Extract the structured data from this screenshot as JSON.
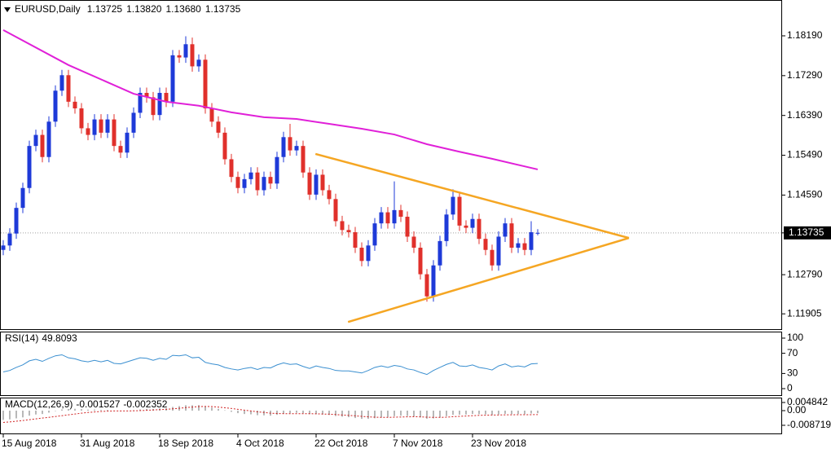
{
  "chart_data": [
    {
      "type": "candlestick",
      "title": "EURUSD,Daily",
      "ohlc_labels": [
        "1.13725",
        "1.13820",
        "1.13680",
        "1.13735"
      ],
      "categories": [
        "15 Aug 2018",
        null,
        null,
        null,
        null,
        null,
        null,
        null,
        null,
        null,
        null,
        null,
        "31 Aug 2018",
        null,
        null,
        null,
        null,
        null,
        null,
        null,
        null,
        null,
        null,
        null,
        "18 Sep 2018",
        null,
        null,
        null,
        null,
        null,
        null,
        null,
        null,
        null,
        null,
        null,
        "4 Oct 2018",
        null,
        null,
        null,
        null,
        null,
        null,
        null,
        null,
        null,
        null,
        null,
        "22 Oct 2018",
        null,
        null,
        null,
        null,
        null,
        null,
        null,
        null,
        null,
        null,
        null,
        "7 Nov 2018",
        null,
        null,
        null,
        null,
        null,
        null,
        null,
        null,
        null,
        null,
        null,
        "23 Nov 2018",
        null,
        null,
        null,
        null,
        null,
        null,
        null,
        null,
        null,
        null
      ],
      "open": [
        1.1335,
        1.1345,
        1.1372,
        1.143,
        1.1475,
        1.157,
        1.1595,
        1.1545,
        1.1625,
        1.1695,
        1.173,
        1.167,
        1.1655,
        1.161,
        1.1595,
        1.163,
        1.16,
        1.163,
        1.157,
        1.1555,
        1.16,
        1.1645,
        1.169,
        1.168,
        1.164,
        1.169,
        1.167,
        1.1775,
        1.177,
        1.18,
        1.175,
        1.1765,
        1.1655,
        1.1625,
        1.16,
        1.154,
        1.15,
        1.1475,
        1.1495,
        1.151,
        1.147,
        1.15,
        1.1485,
        1.1545,
        1.159,
        1.156,
        1.157,
        1.151,
        1.146,
        1.1505,
        1.147,
        1.145,
        1.14,
        1.138,
        1.1375,
        1.134,
        1.131,
        1.1345,
        1.1395,
        1.142,
        1.1395,
        1.1425,
        1.141,
        1.1365,
        1.134,
        1.128,
        1.123,
        1.13,
        1.1355,
        1.1415,
        1.1455,
        1.139,
        1.1385,
        1.1405,
        1.136,
        1.1335,
        1.13,
        1.1365,
        1.1395,
        1.134,
        1.135,
        1.1335,
        1.13725
      ],
      "high": [
        1.1357,
        1.1384,
        1.1442,
        1.1487,
        1.1582,
        1.1607,
        1.1607,
        1.1637,
        1.1707,
        1.1742,
        1.1742,
        1.1682,
        1.1667,
        1.1622,
        1.1642,
        1.1642,
        1.1642,
        1.1642,
        1.1582,
        1.1612,
        1.1657,
        1.1702,
        1.1702,
        1.1692,
        1.1702,
        1.1702,
        1.1787,
        1.1787,
        1.1818,
        1.1815,
        1.1777,
        1.1777,
        1.1667,
        1.1637,
        1.1612,
        1.1552,
        1.1512,
        1.1507,
        1.1522,
        1.1522,
        1.1512,
        1.1512,
        1.1557,
        1.1602,
        1.162,
        1.1582,
        1.1582,
        1.1522,
        1.1517,
        1.1517,
        1.1482,
        1.1462,
        1.1412,
        1.1392,
        1.1387,
        1.1352,
        1.1357,
        1.1407,
        1.1432,
        1.1432,
        1.149,
        1.1437,
        1.1422,
        1.1377,
        1.1352,
        1.1292,
        1.1312,
        1.1367,
        1.1427,
        1.1472,
        1.1467,
        1.1402,
        1.1417,
        1.1417,
        1.1372,
        1.1347,
        1.1377,
        1.1407,
        1.1407,
        1.1362,
        1.1362,
        1.14,
        1.1382
      ],
      "low": [
        1.1323,
        1.1333,
        1.136,
        1.1418,
        1.1463,
        1.1558,
        1.1533,
        1.1533,
        1.1613,
        1.1683,
        1.1658,
        1.1643,
        1.1598,
        1.1583,
        1.1583,
        1.1588,
        1.1588,
        1.1558,
        1.1543,
        1.1543,
        1.1588,
        1.1633,
        1.1668,
        1.1628,
        1.1628,
        1.1658,
        1.1658,
        1.1758,
        1.1758,
        1.1738,
        1.1738,
        1.1643,
        1.1613,
        1.1588,
        1.1528,
        1.1488,
        1.1463,
        1.1463,
        1.1483,
        1.1458,
        1.1458,
        1.1473,
        1.1473,
        1.1533,
        1.1548,
        1.1548,
        1.1498,
        1.1448,
        1.1448,
        1.1458,
        1.1438,
        1.1388,
        1.1368,
        1.1363,
        1.1328,
        1.1298,
        1.1298,
        1.1333,
        1.1383,
        1.1383,
        1.1383,
        1.1398,
        1.1353,
        1.1328,
        1.1268,
        1.1218,
        1.1218,
        1.1288,
        1.1343,
        1.1403,
        1.1378,
        1.1373,
        1.1373,
        1.1348,
        1.1323,
        1.1288,
        1.1288,
        1.1353,
        1.1328,
        1.1328,
        1.1323,
        1.1323,
        1.1368
      ],
      "close": [
        1.1345,
        1.1372,
        1.143,
        1.1475,
        1.157,
        1.1595,
        1.1545,
        1.1625,
        1.1695,
        1.173,
        1.167,
        1.1655,
        1.161,
        1.1595,
        1.163,
        1.16,
        1.163,
        1.157,
        1.1555,
        1.16,
        1.1645,
        1.169,
        1.168,
        1.164,
        1.169,
        1.167,
        1.1775,
        1.177,
        1.18,
        1.175,
        1.1765,
        1.1655,
        1.1625,
        1.16,
        1.154,
        1.15,
        1.1475,
        1.1495,
        1.151,
        1.147,
        1.15,
        1.1485,
        1.1545,
        1.159,
        1.156,
        1.157,
        1.151,
        1.146,
        1.1505,
        1.147,
        1.145,
        1.14,
        1.138,
        1.1375,
        1.134,
        1.131,
        1.1345,
        1.1395,
        1.142,
        1.1395,
        1.1425,
        1.141,
        1.1365,
        1.134,
        1.128,
        1.123,
        1.13,
        1.1355,
        1.1415,
        1.1455,
        1.139,
        1.1385,
        1.1405,
        1.136,
        1.1335,
        1.13,
        1.1365,
        1.1395,
        1.134,
        1.135,
        1.1335,
        1.1375,
        1.13735
      ],
      "up_color": "#1e3ad8",
      "down_color": "#e0302b",
      "ma": {
        "color": "#e020d8",
        "x": [
          0,
          10,
          20,
          25,
          30,
          35,
          40,
          45,
          50,
          55,
          60,
          65,
          70,
          75,
          82
        ],
        "values": [
          1.1832,
          1.1753,
          1.1688,
          1.167,
          1.1661,
          1.1646,
          1.1635,
          1.1631,
          1.162,
          1.1609,
          1.1596,
          1.1574,
          1.1557,
          1.1541,
          1.1517
        ]
      },
      "trendlines": [
        {
          "color": "#f5a623",
          "x": [
            47.9,
            96
          ],
          "values": [
            1.1552,
            1.1362
          ]
        },
        {
          "color": "#f5a623",
          "x": [
            52.9,
            96
          ],
          "values": [
            1.1172,
            1.1362
          ]
        }
      ],
      "ylim": [
        1.1154,
        1.19
      ],
      "yticks": [
        {
          "value": 1.1819,
          "label": "1.18190"
        },
        {
          "value": 1.1729,
          "label": "1.17290"
        },
        {
          "value": 1.1639,
          "label": "1.16390"
        },
        {
          "value": 1.1549,
          "label": "1.15490"
        },
        {
          "value": 1.1459,
          "label": "1.14590"
        },
        {
          "value": 1.13735,
          "label": "1.13735"
        },
        {
          "value": 1.1279,
          "label": "1.12790"
        },
        {
          "value": 1.11905,
          "label": "1.11905"
        }
      ]
    },
    {
      "type": "line",
      "title": "RSI(14)",
      "color": "#3a8fd0",
      "values": [
        33,
        36,
        42,
        47,
        55,
        58,
        54,
        60,
        65,
        67,
        61,
        59,
        55,
        53,
        56,
        53,
        56,
        50,
        49,
        53,
        57,
        61,
        60,
        56,
        60,
        58,
        66,
        65,
        67,
        61,
        62,
        52,
        49,
        47,
        42,
        39,
        37,
        40,
        42,
        38,
        42,
        41,
        47,
        51,
        48,
        49,
        44,
        40,
        45,
        42,
        40,
        36,
        35,
        35,
        33,
        31,
        36,
        42,
        45,
        42,
        46,
        44,
        39,
        37,
        32,
        28,
        36,
        42,
        48,
        52,
        45,
        44,
        47,
        42,
        40,
        37,
        45,
        49,
        43,
        45,
        43,
        49,
        49.8093
      ],
      "ylim": [
        0,
        100
      ],
      "yticks": [
        100,
        70,
        30,
        0
      ]
    },
    {
      "type": "macd",
      "title": "MACD(12,26,9)",
      "color": "#b8b8b8",
      "signal_color": "#d02020",
      "values": [
        -0.0055,
        -0.0052,
        -0.0046,
        -0.004,
        -0.003,
        -0.0023,
        -0.002,
        -0.0012,
        -0.0002,
        0.0007,
        0.001,
        0.0011,
        0.0009,
        0.0006,
        0.0006,
        0.0004,
        0.0004,
        0,
        -0.0003,
        -0.0002,
        0.0002,
        0.0007,
        0.001,
        0.001,
        0.0013,
        0.0014,
        0.0022,
        0.0027,
        0.0032,
        0.0032,
        0.0033,
        0.0025,
        0.0018,
        0.0011,
        0.0002,
        -0.0007,
        -0.0015,
        -0.002,
        -0.0022,
        -0.0027,
        -0.0028,
        -0.003,
        -0.0025,
        -0.0018,
        -0.0016,
        -0.0013,
        -0.0016,
        -0.0021,
        -0.0021,
        -0.0023,
        -0.0026,
        -0.0032,
        -0.0036,
        -0.0039,
        -0.0044,
        -0.0049,
        -0.0049,
        -0.0045,
        -0.004,
        -0.0038,
        -0.0033,
        -0.003,
        -0.0032,
        -0.0034,
        -0.004,
        -0.0048,
        -0.0046,
        -0.0041,
        -0.0033,
        -0.0025,
        -0.0024,
        -0.0023,
        -0.002,
        -0.0021,
        -0.0022,
        -0.0026,
        -0.0023,
        -0.0019,
        -0.0021,
        -0.002,
        -0.0021,
        -0.0017,
        -0.001527
      ],
      "signal": [
        -0.007,
        -0.0067,
        -0.0063,
        -0.0059,
        -0.0054,
        -0.0049,
        -0.0044,
        -0.004,
        -0.0035,
        -0.003,
        -0.0025,
        -0.002,
        -0.0015,
        -0.0011,
        -0.0008,
        -0.0005,
        -0.0003,
        -0.0002,
        -0.0002,
        -0.0002,
        -0.0001,
        0,
        0.0002,
        0.0004,
        0.0006,
        0.0008,
        0.0011,
        0.0014,
        0.0018,
        0.0021,
        0.0024,
        0.0025,
        0.0024,
        0.0021,
        0.0017,
        0.0013,
        0.0008,
        0.0003,
        -0.0002,
        -0.0007,
        -0.0011,
        -0.0015,
        -0.0017,
        -0.0018,
        -0.0018,
        -0.0018,
        -0.0018,
        -0.0018,
        -0.0019,
        -0.002,
        -0.0021,
        -0.0023,
        -0.0026,
        -0.0028,
        -0.0031,
        -0.0034,
        -0.0037,
        -0.0039,
        -0.004,
        -0.004,
        -0.0039,
        -0.0038,
        -0.0037,
        -0.0036,
        -0.0037,
        -0.0039,
        -0.004,
        -0.004,
        -0.0039,
        -0.0036,
        -0.0034,
        -0.0032,
        -0.003,
        -0.0028,
        -0.0027,
        -0.0026,
        -0.0026,
        -0.0025,
        -0.0025,
        -0.0024,
        -0.0024,
        -0.0024,
        -0.002352
      ],
      "ylim": [
        -0.008719,
        0.004842
      ],
      "yticks": [
        0.004842,
        {
          "value": 0,
          "label": "0.00"
        },
        -0.008719
      ]
    }
  ]
}
